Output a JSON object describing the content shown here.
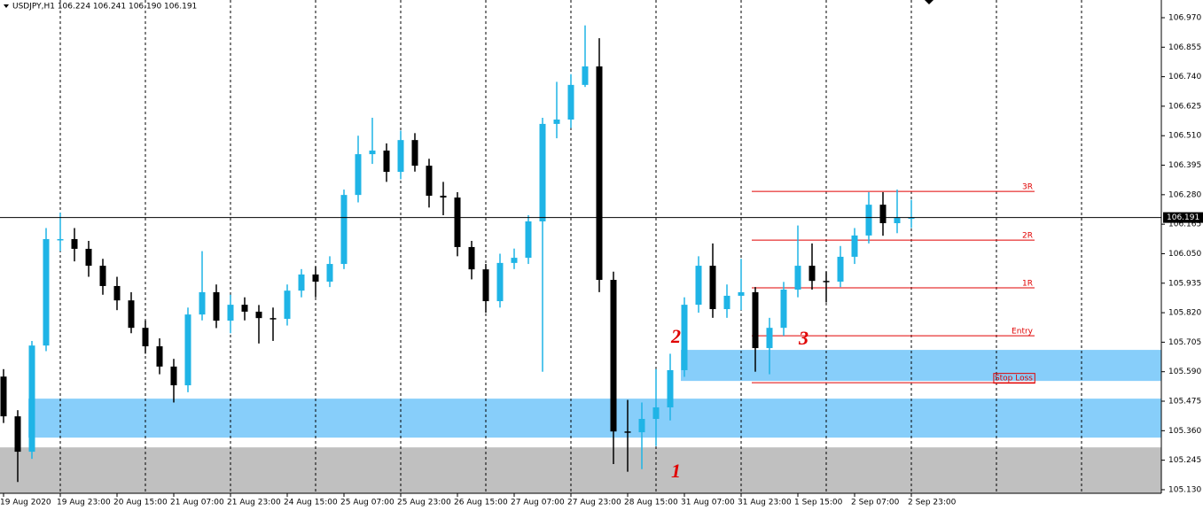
{
  "chart_data": {
    "type": "candlestick",
    "title": "USDJPY,H1 106.224 106.241 106.190 106.191",
    "up_color": "#1fb4e6",
    "down_color": "#000000",
    "categories": [
      "19 Aug 2020",
      null,
      null,
      null,
      "19 Aug 23:00",
      null,
      null,
      null,
      "20 Aug 15:00",
      null,
      null,
      null,
      "21 Aug 07:00",
      null,
      null,
      null,
      "21 Aug 23:00",
      null,
      null,
      null,
      "24 Aug 15:00",
      null,
      null,
      null,
      "25 Aug 07:00",
      null,
      null,
      null,
      "25 Aug 23:00",
      null,
      null,
      null,
      "26 Aug 15:00",
      null,
      null,
      null,
      "27 Aug 07:00",
      null,
      null,
      null,
      "27 Aug 23:00",
      null,
      null,
      null,
      "28 Aug 15:00",
      null,
      null,
      null,
      "31 Aug 07:00",
      null,
      null,
      null,
      "31 Aug 23:00",
      null,
      null,
      null,
      "1 Sep 15:00",
      null,
      null,
      null,
      "2 Sep 07:00",
      null,
      null,
      null,
      "2 Sep 23:00"
    ],
    "open": [
      105.571,
      105.416,
      105.278,
      105.692,
      106.107,
      106.107,
      106.069,
      106.003,
      105.924,
      105.868,
      105.761,
      105.689,
      105.61,
      105.537,
      105.813,
      105.9,
      105.789,
      105.851,
      105.824,
      105.799,
      105.796,
      105.906,
      105.969,
      105.941,
      106.01,
      106.279,
      106.438,
      106.452,
      106.369,
      106.493,
      106.393,
      106.276,
      106.269,
      106.076,
      105.989,
      105.865,
      106.014,
      106.034,
      106.176,
      106.556,
      106.573,
      106.708,
      106.78,
      105.948,
      105.357,
      105.354,
      105.406,
      105.451,
      105.596,
      105.851,
      106.003,
      105.834,
      105.886,
      105.9,
      105.682,
      105.761,
      105.91,
      106.003,
      105.944,
      105.941,
      106.038,
      106.121,
      106.241,
      106.169,
      106.19
    ],
    "high": [
      105.6,
      105.44,
      105.71,
      106.15,
      106.21,
      106.15,
      106.1,
      106.03,
      105.96,
      105.9,
      105.79,
      105.72,
      105.64,
      105.84,
      106.06,
      105.93,
      105.89,
      105.88,
      105.85,
      105.84,
      105.93,
      105.99,
      106.0,
      106.04,
      106.3,
      106.51,
      106.58,
      106.48,
      106.53,
      106.52,
      106.42,
      106.33,
      106.29,
      106.1,
      106.01,
      106.05,
      106.07,
      106.2,
      106.58,
      106.72,
      106.75,
      106.94,
      106.89,
      105.98,
      105.48,
      105.47,
      105.6,
      105.66,
      105.88,
      106.04,
      106.09,
      105.93,
      106.03,
      105.92,
      105.8,
      105.94,
      106.16,
      106.09,
      105.98,
      106.08,
      106.15,
      106.29,
      106.29,
      106.3,
      106.26
    ],
    "low": [
      105.39,
      105.16,
      105.25,
      105.67,
      106.06,
      106.02,
      105.96,
      105.89,
      105.83,
      105.74,
      105.66,
      105.58,
      105.47,
      105.51,
      105.79,
      105.76,
      105.74,
      105.79,
      105.7,
      105.71,
      105.77,
      105.88,
      105.88,
      105.92,
      105.99,
      106.25,
      106.4,
      106.33,
      106.34,
      106.37,
      106.23,
      106.2,
      106.04,
      105.95,
      105.82,
      105.84,
      105.99,
      106.01,
      105.59,
      106.5,
      106.54,
      106.7,
      105.9,
      105.23,
      105.2,
      105.21,
      105.3,
      105.4,
      105.57,
      105.82,
      105.8,
      105.8,
      105.83,
      105.59,
      105.58,
      105.73,
      105.88,
      105.91,
      105.86,
      105.92,
      106.01,
      106.09,
      106.12,
      106.13,
      106.15
    ],
    "close": [
      105.416,
      105.278,
      105.692,
      106.107,
      106.107,
      106.069,
      106.003,
      105.924,
      105.868,
      105.761,
      105.689,
      105.61,
      105.537,
      105.813,
      105.9,
      105.789,
      105.851,
      105.824,
      105.799,
      105.796,
      105.906,
      105.969,
      105.941,
      106.01,
      106.279,
      106.438,
      106.452,
      106.369,
      106.493,
      106.393,
      106.276,
      106.269,
      106.076,
      105.989,
      105.865,
      106.014,
      106.034,
      106.176,
      106.556,
      106.573,
      106.708,
      106.78,
      105.948,
      105.357,
      105.354,
      105.406,
      105.451,
      105.596,
      105.851,
      106.003,
      105.834,
      105.886,
      105.9,
      105.682,
      105.761,
      105.91,
      106.003,
      105.944,
      105.941,
      106.038,
      106.121,
      106.241,
      106.169,
      106.19,
      106.191
    ],
    "ylim": [
      105.116,
      107.039
    ],
    "yticks": [
      {
        "value": 106.97,
        "label": "106.970"
      },
      106.855,
      {
        "value": 106.74,
        "label": "106.740"
      },
      106.625,
      {
        "value": 106.51,
        "label": "106.510"
      },
      106.395,
      {
        "value": 106.28,
        "label": "106.280"
      },
      106.165,
      {
        "value": 106.05,
        "label": "106.050"
      },
      105.935,
      {
        "value": 105.82,
        "label": "105.820"
      },
      105.705,
      {
        "value": 105.59,
        "label": "105.590"
      },
      105.475,
      {
        "value": 105.36,
        "label": "105.360"
      },
      105.245,
      {
        "value": 105.13,
        "label": "105.130"
      }
    ],
    "current_price": 106.191,
    "zones": [
      {
        "from": 105.295,
        "to": 105.116,
        "color": "#c0c0c0",
        "start_index": 0
      },
      {
        "from": 105.485,
        "to": 105.333,
        "color": "#87cefa",
        "start_index": 2
      },
      {
        "from": 105.675,
        "to": 105.554,
        "color": "#87cefa",
        "start_index": 48
      }
    ],
    "levels": [
      {
        "label": "3R",
        "value": 106.293
      },
      {
        "label": "2R",
        "value": 106.103
      },
      {
        "label": "1R",
        "value": 105.917
      },
      {
        "label": "Entry",
        "value": 105.73
      },
      {
        "label": "Stop Loss",
        "value": 105.547
      }
    ],
    "level_color": "#e00000",
    "annotations": [
      "1",
      "2",
      "3"
    ]
  }
}
